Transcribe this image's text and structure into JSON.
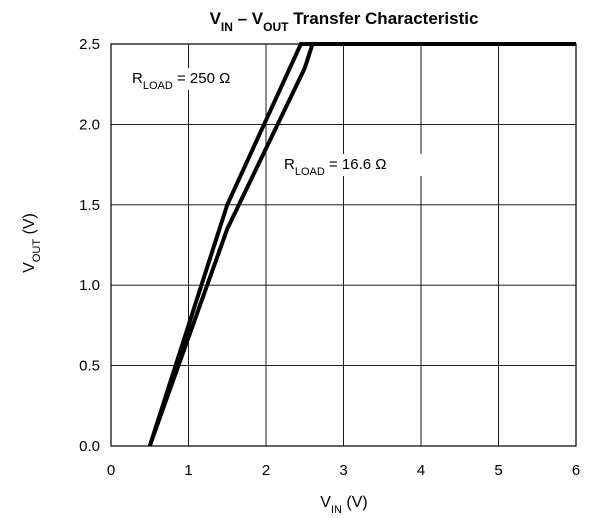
{
  "chart_data": {
    "type": "line",
    "title": {
      "parts": [
        {
          "text": "V",
          "sub": false
        },
        {
          "text": "IN",
          "sub": true
        },
        {
          "text": " – V",
          "sub": false
        },
        {
          "text": "OUT",
          "sub": true
        },
        {
          "text": " Transfer Characteristic",
          "sub": false
        }
      ]
    },
    "xlabel": {
      "parts": [
        {
          "text": "V",
          "sub": false
        },
        {
          "text": "IN",
          "sub": true
        },
        {
          "text": " (V)",
          "sub": false
        }
      ]
    },
    "ylabel": {
      "parts": [
        {
          "text": "V",
          "sub": false
        },
        {
          "text": "OUT",
          "sub": true
        },
        {
          "text": " (V)",
          "sub": false
        }
      ]
    },
    "xlim": [
      0,
      6
    ],
    "ylim": [
      0,
      2.5
    ],
    "xticks": [
      "0",
      "1",
      "2",
      "3",
      "4",
      "5",
      "6"
    ],
    "yticks": [
      "0.0",
      "0.5",
      "1.0",
      "1.5",
      "2.0",
      "2.5"
    ],
    "grid": true,
    "series": [
      {
        "label": {
          "parts": [
            {
              "text": "R",
              "sub": false
            },
            {
              "text": "LOAD",
              "sub": true
            },
            {
              "text": " = 250 Ω",
              "sub": false
            }
          ]
        },
        "x": [
          0.5,
          1.5,
          2.45,
          2.55,
          6.0
        ],
        "y": [
          0.0,
          1.5,
          2.5,
          2.5,
          2.5
        ]
      },
      {
        "label": {
          "parts": [
            {
              "text": "R",
              "sub": false
            },
            {
              "text": "LOAD",
              "sub": true
            },
            {
              "text": " = 16.6 Ω",
              "sub": false
            }
          ]
        },
        "x": [
          0.5,
          1.5,
          2.5,
          2.6,
          6.0
        ],
        "y": [
          0.0,
          1.35,
          2.35,
          2.5,
          2.5
        ]
      }
    ]
  }
}
